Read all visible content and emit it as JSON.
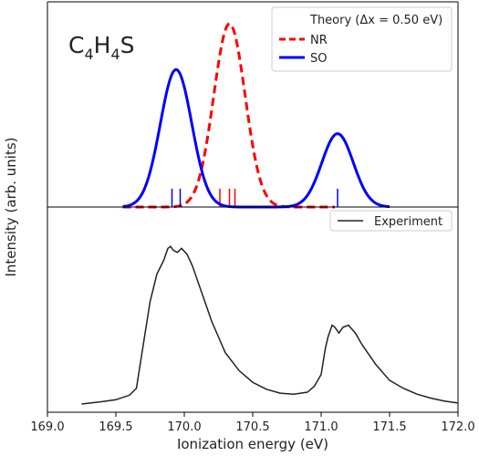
{
  "chart_data": {
    "type": "line",
    "xlabel": "Ionization energy (eV)",
    "ylabel": "Intensity (arb. units)",
    "xlim": [
      169.0,
      172.0
    ],
    "x_ticks": [
      "169.0",
      "169.5",
      "170.0",
      "170.5",
      "171.0",
      "171.5",
      "172.0"
    ],
    "x_tick_values": [
      169.0,
      169.5,
      170.0,
      170.5,
      171.0,
      171.5,
      172.0
    ],
    "grid": false,
    "panels": [
      {
        "annotation": {
          "base": "C",
          "sub1": "4",
          "mid": "H",
          "sub2": "4",
          "tail": "S"
        },
        "legend_position": "top-right",
        "legend_title": "Theory (Δx = 0.50 eV)",
        "ylim": [
          0,
          1.12
        ],
        "series": [
          {
            "name": "NR",
            "color": "#ff0000",
            "style": "dashed",
            "gaussian": {
              "center": 170.33,
              "amplitude": 1.0,
              "sigma": 0.115,
              "x_from": 169.55,
              "x_to": 171.1
            },
            "stick_positions": [
              170.26,
              170.33,
              170.37
            ],
            "stick_height": 0.1
          },
          {
            "name": "SO",
            "color": "#0000ff",
            "style": "solid",
            "gaussians": [
              {
                "center": 169.94,
                "amplitude": 0.75,
                "sigma": 0.115
              },
              {
                "center": 171.12,
                "amplitude": 0.4,
                "sigma": 0.115
              }
            ],
            "x_from": 169.55,
            "x_to": 171.5,
            "stick_positions": [
              169.91,
              169.97,
              171.12
            ],
            "stick_height": 0.1
          }
        ]
      },
      {
        "legend_position": "top-right",
        "ylim": [
          0,
          1.0
        ],
        "series": [
          {
            "name": "Experiment",
            "color": "#222222",
            "style": "solid",
            "x": [
              169.25,
              169.4,
              169.5,
              169.6,
              169.65,
              169.7,
              169.75,
              169.8,
              169.85,
              169.88,
              169.9,
              169.92,
              169.95,
              169.98,
              170.02,
              170.06,
              170.1,
              170.15,
              170.2,
              170.3,
              170.4,
              170.5,
              170.6,
              170.7,
              170.8,
              170.9,
              170.95,
              171.0,
              171.03,
              171.05,
              171.08,
              171.1,
              171.13,
              171.16,
              171.2,
              171.25,
              171.3,
              171.4,
              171.5,
              171.6,
              171.7,
              171.8,
              171.9,
              172.0
            ],
            "y": [
              0.0,
              0.012,
              0.022,
              0.045,
              0.08,
              0.3,
              0.52,
              0.66,
              0.73,
              0.79,
              0.8,
              0.78,
              0.77,
              0.79,
              0.76,
              0.7,
              0.62,
              0.52,
              0.42,
              0.26,
              0.17,
              0.11,
              0.075,
              0.055,
              0.05,
              0.06,
              0.09,
              0.15,
              0.28,
              0.34,
              0.4,
              0.39,
              0.36,
              0.39,
              0.4,
              0.36,
              0.3,
              0.2,
              0.12,
              0.08,
              0.05,
              0.03,
              0.015,
              0.005
            ]
          }
        ]
      }
    ]
  }
}
